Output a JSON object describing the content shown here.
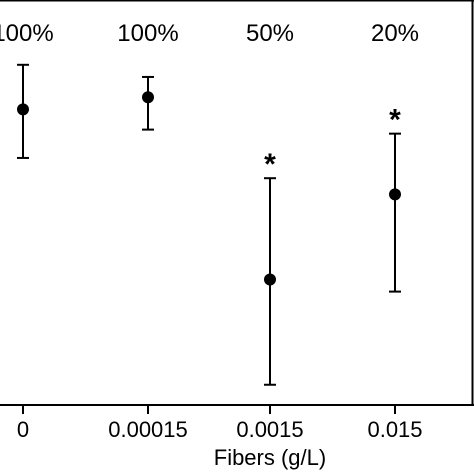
{
  "chart_data": {
    "type": "scatter",
    "categories": [
      "0",
      "0.00015",
      "0.0015",
      "0.015"
    ],
    "xlabel": "Fibers (g/L)",
    "ylabel": "",
    "ylim": [
      0,
      1
    ],
    "grid": false,
    "series": [
      {
        "values": [
          0.73,
          0.76,
          0.31,
          0.52
        ],
        "err_low": [
          0.61,
          0.68,
          0.05,
          0.28
        ],
        "err_high": [
          0.84,
          0.81,
          0.56,
          0.67
        ]
      }
    ],
    "percent_labels": [
      "100%",
      "100%",
      "50%",
      "20%"
    ],
    "significance": [
      "",
      "",
      "*",
      "*"
    ]
  }
}
